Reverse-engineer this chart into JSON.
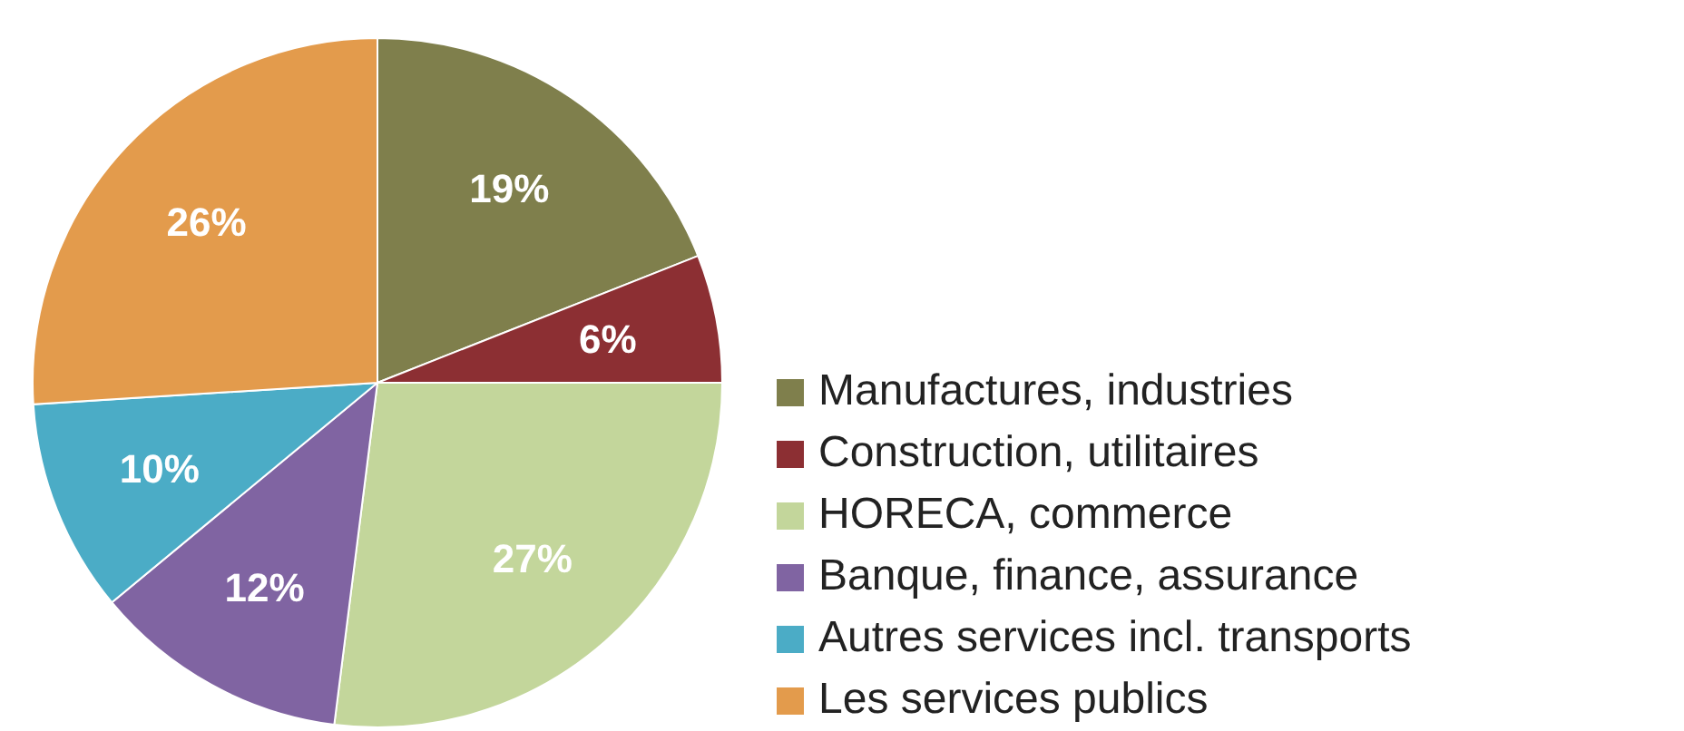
{
  "chart_data": {
    "type": "pie",
    "categories": [
      "Manufactures, industries",
      "Construction, utilitaires",
      "HORECA, commerce",
      "Banque, finance, assurance",
      "Autres services incl. transports",
      "Les services publics"
    ],
    "values": [
      19,
      6,
      27,
      12,
      10,
      26
    ],
    "value_labels": [
      "19%",
      "6%",
      "27%",
      "12%",
      "10%",
      "26%"
    ],
    "colors": [
      "#7f7f4c",
      "#8c2f33",
      "#c3d69b",
      "#8064a2",
      "#4bacc6",
      "#e39b4c"
    ],
    "legend": "right"
  }
}
